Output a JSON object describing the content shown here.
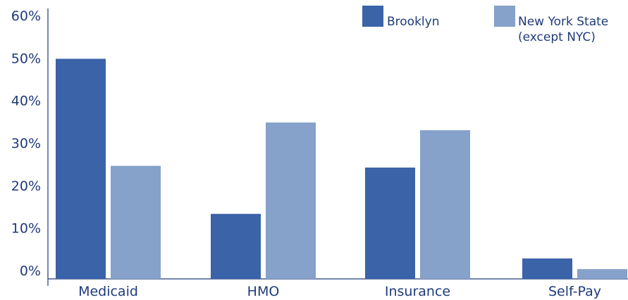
{
  "chart_data": {
    "type": "bar",
    "title": "",
    "xlabel": "",
    "ylabel": "",
    "ylim": [
      0,
      60
    ],
    "yticks": [
      "0%",
      "10%",
      "20%",
      "30%",
      "40%",
      "50%",
      "60%"
    ],
    "ytick_values": [
      0,
      10,
      20,
      30,
      40,
      50,
      60
    ],
    "categories": [
      "Medicaid",
      "HMO",
      "Insurance",
      "Self-Pay"
    ],
    "series": [
      {
        "name": "Brooklyn",
        "color": "#3a63a8",
        "values": [
          51.8,
          15.3,
          26.2,
          4.8
        ]
      },
      {
        "name_lines": [
          "New York State",
          "(except NYC)"
        ],
        "color": "#86a1ca",
        "values": [
          26.6,
          36.8,
          35.0,
          2.3
        ]
      }
    ],
    "legend_position": "top-right",
    "grid": false
  }
}
